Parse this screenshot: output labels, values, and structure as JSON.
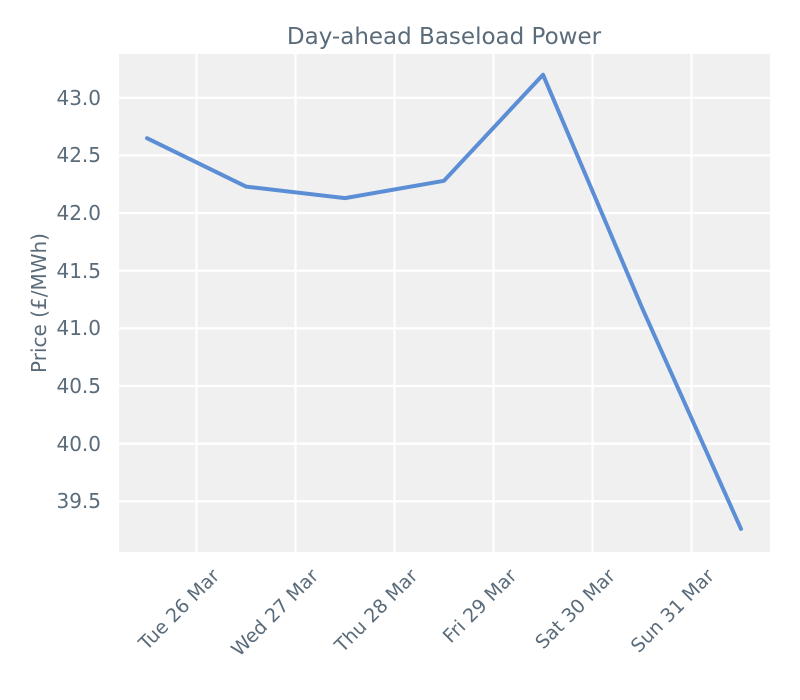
{
  "chart_data": {
    "type": "line",
    "title": "Day-ahead Baseload Power",
    "ylabel": "Price (£/MWh)",
    "xlabel": "",
    "x_tick_labels": [
      "Tue 26 Mar",
      "Wed 27 Mar",
      "Thu 28 Mar",
      "Fri 29 Mar",
      "Sat 30 Mar",
      "Sun 31 Mar"
    ],
    "y_ticks": [
      39.5,
      40.0,
      40.5,
      41.0,
      41.5,
      42.0,
      42.5,
      43.0
    ],
    "series": [
      {
        "name": "day-ahead-baseload-price",
        "values": [
          42.65,
          42.23,
          42.13,
          42.28,
          43.2,
          41.18,
          39.26
        ]
      }
    ],
    "x_structure": "7 daily data points; the 6 labeled ticks/gridlines sit midway between consecutive points",
    "ylim": [
      39.06,
      43.38
    ],
    "grid": true,
    "legend": false,
    "colors": {
      "line": "#5c8ed6",
      "plot_background": "#f0f0f0",
      "gridline": "#ffffff",
      "text": "#5a6b7a"
    }
  }
}
